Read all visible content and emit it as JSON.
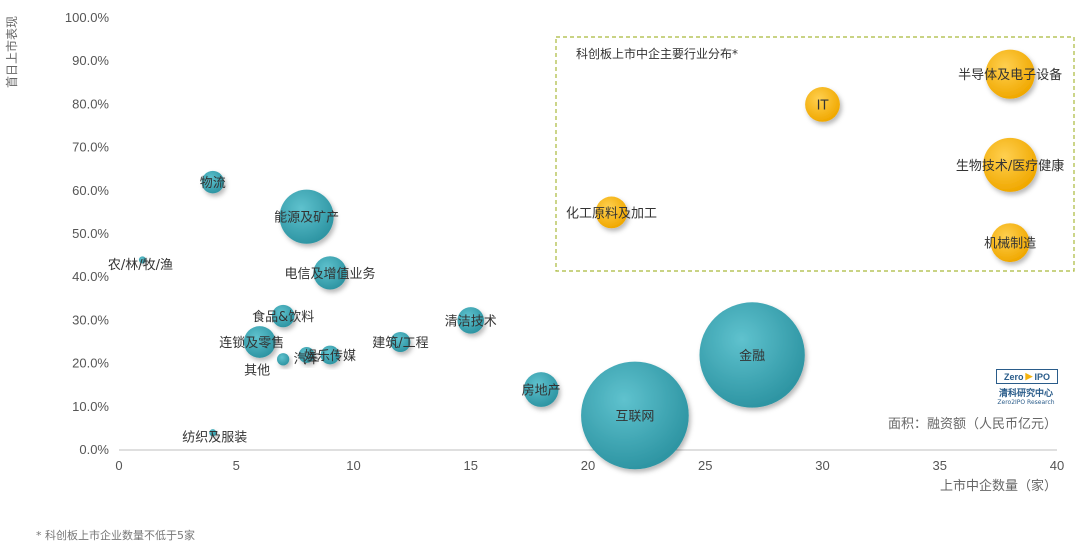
{
  "chart_data": {
    "type": "scatter",
    "subtype": "bubble",
    "ylabel": "首日上市表现",
    "xlabel": "上市中企数量（家）",
    "xlim": [
      0,
      40
    ],
    "ylim": [
      0,
      100
    ],
    "xticks": [
      "0",
      "5",
      "10",
      "15",
      "20",
      "25",
      "30",
      "35",
      "40"
    ],
    "yticks": [
      "0.0%",
      "10.0%",
      "20.0%",
      "30.0%",
      "40.0%",
      "50.0%",
      "60.0%",
      "70.0%",
      "80.0%",
      "90.0%",
      "100.0%"
    ],
    "size_note": "面积：融资额（人民币亿元）",
    "highlight_box_title": "科创板上市中企主要行业分布*",
    "footnote": "* 科创板上市企业数量不低于5家",
    "colors": {
      "teal": "#3aa3b1",
      "gold": "#f5b40f",
      "highlight_border": "#a9b93b"
    },
    "points": [
      {
        "label": "农/林/牧/渔",
        "x": 1,
        "y": 44,
        "size": 1,
        "color": "teal"
      },
      {
        "label": "物流",
        "x": 4,
        "y": 62,
        "size": 10,
        "color": "teal"
      },
      {
        "label": "纺织及服装",
        "x": 4,
        "y": 4,
        "size": 1,
        "color": "teal"
      },
      {
        "label": "能源及矿产",
        "x": 8,
        "y": 54,
        "size": 58,
        "color": "teal"
      },
      {
        "label": "电信及增值业务",
        "x": 9,
        "y": 41,
        "size": 22,
        "color": "teal"
      },
      {
        "label": "食品&饮料",
        "x": 7,
        "y": 31,
        "size": 10,
        "color": "teal"
      },
      {
        "label": "连锁及零售",
        "x": 6,
        "y": 25,
        "size": 20,
        "color": "teal"
      },
      {
        "label": "汽车",
        "x": 8,
        "y": 22,
        "size": 5,
        "color": "teal"
      },
      {
        "label": "其他",
        "x": 7,
        "y": 21,
        "size": 3,
        "color": "teal"
      },
      {
        "label": "娱乐传媒",
        "x": 9,
        "y": 22,
        "size": 7,
        "color": "teal"
      },
      {
        "label": "建筑/工程",
        "x": 12,
        "y": 25,
        "size": 8,
        "color": "teal"
      },
      {
        "label": "清洁技术",
        "x": 15,
        "y": 30,
        "size": 14,
        "color": "teal"
      },
      {
        "label": "房地产",
        "x": 18,
        "y": 14,
        "size": 24,
        "color": "teal"
      },
      {
        "label": "互联网",
        "x": 22,
        "y": 8,
        "size": 230,
        "color": "teal"
      },
      {
        "label": "金融",
        "x": 27,
        "y": 22,
        "size": 220,
        "color": "teal"
      },
      {
        "label": "化工原料及加工",
        "x": 21,
        "y": 55,
        "size": 20,
        "color": "gold"
      },
      {
        "label": "IT",
        "x": 30,
        "y": 80,
        "size": 24,
        "color": "gold"
      },
      {
        "label": "半导体及电子设备",
        "x": 38,
        "y": 87,
        "size": 48,
        "color": "gold"
      },
      {
        "label": "生物技术/医疗健康",
        "x": 38,
        "y": 66,
        "size": 58,
        "color": "gold"
      },
      {
        "label": "机械制造",
        "x": 38,
        "y": 48,
        "size": 30,
        "color": "gold"
      }
    ]
  },
  "logo": {
    "brand_left": "Zero",
    "brand_right": "IPO",
    "name_cn": "清科研究中心",
    "name_en": "Zero2IPO Research"
  }
}
